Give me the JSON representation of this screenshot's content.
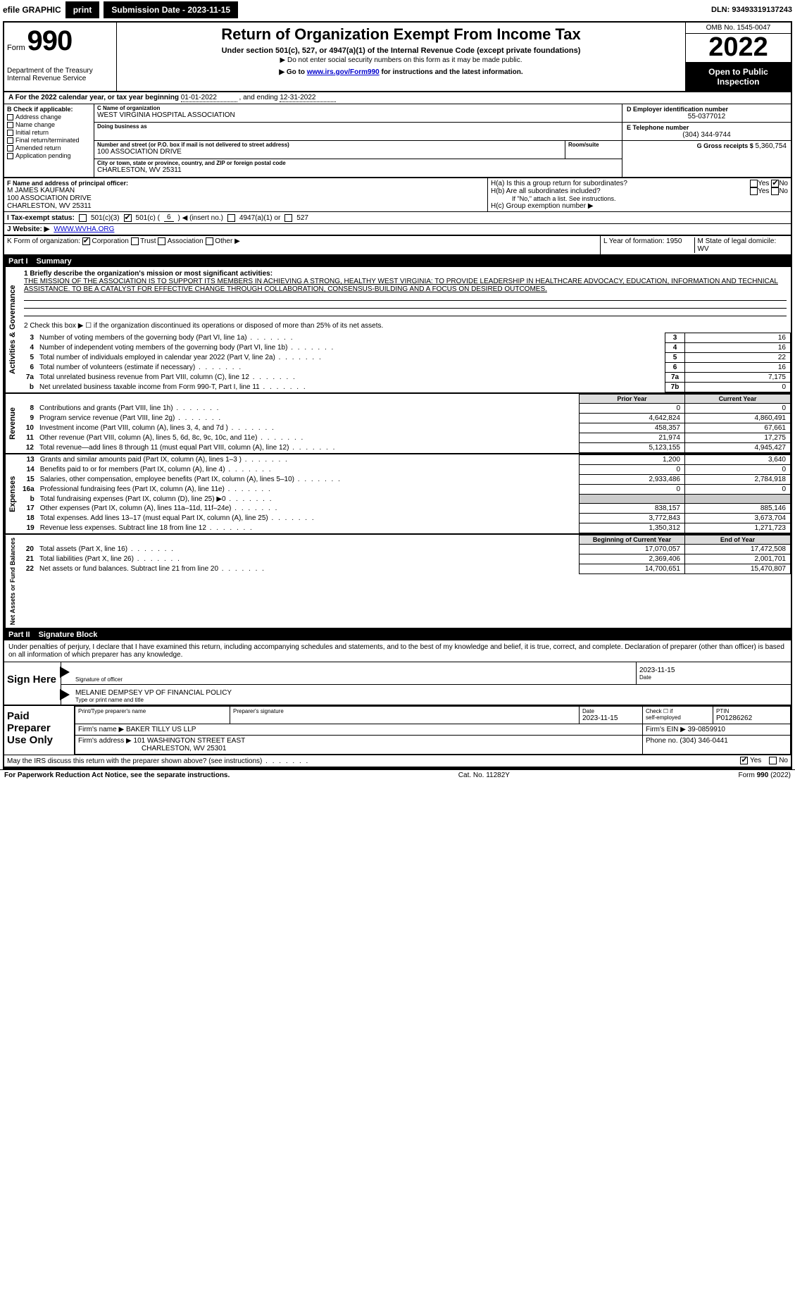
{
  "topbar": {
    "efile": "efile GRAPHIC",
    "print": "print",
    "submission": "Submission Date - 2023-11-15",
    "dln": "DLN: 93493319137243"
  },
  "header": {
    "form_word": "Form",
    "form_no": "990",
    "title": "Return of Organization Exempt From Income Tax",
    "sub": "Under section 501(c), 527, or 4947(a)(1) of the Internal Revenue Code (except private foundations)",
    "sub2": "▶ Do not enter social security numbers on this form as it may be made public.",
    "sub3_pre": "▶ Go to ",
    "sub3_link": "www.irs.gov/Form990",
    "sub3_post": " for instructions and the latest information.",
    "dept1": "Department of the Treasury",
    "dept2": "Internal Revenue Service",
    "omb": "OMB No. 1545-0047",
    "year": "2022",
    "open": "Open to Public Inspection"
  },
  "lineA": {
    "pre": "A For the 2022 calendar year, or tax year beginning ",
    "begin": "01-01-2022",
    "mid": " , and ending ",
    "end": "12-31-2022"
  },
  "boxB": {
    "hdr": "B Check if applicable:",
    "items": [
      "Address change",
      "Name change",
      "Initial return",
      "Final return/terminated",
      "Amended return",
      "Application pending"
    ]
  },
  "boxC": {
    "label": "C Name of organization",
    "name": "WEST VIRGINIA HOSPITAL ASSOCIATION",
    "dba_label": "Doing business as",
    "street_label": "Number and street (or P.O. box if mail is not delivered to street address)",
    "room_label": "Room/suite",
    "street": "100 ASSOCIATION DRIVE",
    "city_label": "City or town, state or province, country, and ZIP or foreign postal code",
    "city": "CHARLESTON, WV  25311"
  },
  "boxD": {
    "label": "D Employer identification number",
    "val": "55-0377012"
  },
  "boxE": {
    "label": "E Telephone number",
    "val": "(304) 344-9744"
  },
  "boxG": {
    "label": "G Gross receipts $",
    "val": "5,360,754"
  },
  "boxF": {
    "label": "F Name and address of principal officer:",
    "line1": "M JAMES KAUFMAN",
    "line2": "100 ASSOCIATION DRIVE",
    "line3": "CHARLESTON, WV  25311"
  },
  "boxH": {
    "a": "H(a)  Is this a group return for subordinates?",
    "b": "H(b)  Are all subordinates included?",
    "b2": "If \"No,\" attach a list. See instructions.",
    "c": "H(c)  Group exemption number ▶",
    "yes": "Yes",
    "no": "No"
  },
  "boxI": {
    "label": "I  Tax-exempt status:",
    "o1": "501(c)(3)",
    "o2a": "501(c) (",
    "o2n": "6",
    "o2b": ") ◀ (insert no.)",
    "o3": "4947(a)(1) or",
    "o4": "527"
  },
  "boxJ": {
    "label": "J  Website: ▶",
    "val": "WWW.WVHA.ORG"
  },
  "boxK": {
    "label": "K Form of organization:",
    "o1": "Corporation",
    "o2": "Trust",
    "o3": "Association",
    "o4": "Other ▶"
  },
  "boxL": {
    "label": "L Year of formation:",
    "val": "1950"
  },
  "boxM": {
    "label": "M State of legal domicile:",
    "val": "WV"
  },
  "part1": {
    "hdr_num": "Part I",
    "hdr_title": "Summary",
    "side1": "Activities & Governance",
    "side2": "Revenue",
    "side3": "Expenses",
    "side4": "Net Assets or Fund Balances",
    "l1": "1  Briefly describe the organization's mission or most significant activities:",
    "mission": "THE MISSION OF THE ASSOCIATION IS TO SUPPORT ITS MEMBERS IN ACHIEVING A STRONG, HEALTHY WEST VIRGINIA: TO PROVIDE LEADERSHIP IN HEALTHCARE ADVOCACY, EDUCATION, INFORMATION AND TECHNICAL ASSISTANCE. TO BE A CATALYST FOR EFFECTIVE CHANGE THROUGH COLLABORATION, CONSENSUS-BUILDING AND A FOCUS ON DESIRED OUTCOMES.",
    "l2": "2  Check this box ▶ ☐ if the organization discontinued its operations or disposed of more than 25% of its net assets.",
    "rows_a": [
      {
        "n": "3",
        "t": "Number of voting members of the governing body (Part VI, line 1a)",
        "b": "3",
        "v": "16"
      },
      {
        "n": "4",
        "t": "Number of independent voting members of the governing body (Part VI, line 1b)",
        "b": "4",
        "v": "16"
      },
      {
        "n": "5",
        "t": "Total number of individuals employed in calendar year 2022 (Part V, line 2a)",
        "b": "5",
        "v": "22"
      },
      {
        "n": "6",
        "t": "Total number of volunteers (estimate if necessary)",
        "b": "6",
        "v": "16"
      },
      {
        "n": "7a",
        "t": "Total unrelated business revenue from Part VIII, column (C), line 12",
        "b": "7a",
        "v": "7,175"
      },
      {
        "n": "b",
        "t": "Net unrelated business taxable income from Form 990-T, Part I, line 11",
        "b": "7b",
        "v": "0"
      }
    ],
    "col_prior": "Prior Year",
    "col_current": "Current Year",
    "rows_rev": [
      {
        "n": "8",
        "t": "Contributions and grants (Part VIII, line 1h)",
        "p": "0",
        "c": "0"
      },
      {
        "n": "9",
        "t": "Program service revenue (Part VIII, line 2g)",
        "p": "4,642,824",
        "c": "4,860,491"
      },
      {
        "n": "10",
        "t": "Investment income (Part VIII, column (A), lines 3, 4, and 7d )",
        "p": "458,357",
        "c": "67,661"
      },
      {
        "n": "11",
        "t": "Other revenue (Part VIII, column (A), lines 5, 6d, 8c, 9c, 10c, and 11e)",
        "p": "21,974",
        "c": "17,275"
      },
      {
        "n": "12",
        "t": "Total revenue—add lines 8 through 11 (must equal Part VIII, column (A), line 12)",
        "p": "5,123,155",
        "c": "4,945,427"
      }
    ],
    "rows_exp": [
      {
        "n": "13",
        "t": "Grants and similar amounts paid (Part IX, column (A), lines 1–3 )",
        "p": "1,200",
        "c": "3,640"
      },
      {
        "n": "14",
        "t": "Benefits paid to or for members (Part IX, column (A), line 4)",
        "p": "0",
        "c": "0"
      },
      {
        "n": "15",
        "t": "Salaries, other compensation, employee benefits (Part IX, column (A), lines 5–10)",
        "p": "2,933,486",
        "c": "2,784,918"
      },
      {
        "n": "16a",
        "t": "Professional fundraising fees (Part IX, column (A), line 11e)",
        "p": "0",
        "c": "0"
      },
      {
        "n": "b",
        "t": "Total fundraising expenses (Part IX, column (D), line 25) ▶0",
        "p": "",
        "c": "",
        "shade": true
      },
      {
        "n": "17",
        "t": "Other expenses (Part IX, column (A), lines 11a–11d, 11f–24e)",
        "p": "838,157",
        "c": "885,146"
      },
      {
        "n": "18",
        "t": "Total expenses. Add lines 13–17 (must equal Part IX, column (A), line 25)",
        "p": "3,772,843",
        "c": "3,673,704"
      },
      {
        "n": "19",
        "t": "Revenue less expenses. Subtract line 18 from line 12",
        "p": "1,350,312",
        "c": "1,271,723"
      }
    ],
    "col_bog": "Beginning of Current Year",
    "col_eoy": "End of Year",
    "rows_net": [
      {
        "n": "20",
        "t": "Total assets (Part X, line 16)",
        "p": "17,070,057",
        "c": "17,472,508"
      },
      {
        "n": "21",
        "t": "Total liabilities (Part X, line 26)",
        "p": "2,369,406",
        "c": "2,001,701"
      },
      {
        "n": "22",
        "t": "Net assets or fund balances. Subtract line 21 from line 20",
        "p": "14,700,651",
        "c": "15,470,807"
      }
    ]
  },
  "part2": {
    "hdr_num": "Part II",
    "hdr_title": "Signature Block",
    "intro": "Under penalties of perjury, I declare that I have examined this return, including accompanying schedules and statements, and to the best of my knowledge and belief, it is true, correct, and complete. Declaration of preparer (other than officer) is based on all information of which preparer has any knowledge.",
    "sign": "Sign Here",
    "sig_officer": "Signature of officer",
    "sig_date": "Date",
    "sig_date_val": "2023-11-15",
    "sig_name": "MELANIE DEMPSEY VP OF FINANCIAL POLICY",
    "sig_type": "Type or print name and title",
    "paid": "Paid Preparer Use Only",
    "p_h1": "Print/Type preparer's name",
    "p_h2": "Preparer's signature",
    "p_h3": "Date",
    "p_h3v": "2023-11-15",
    "p_h4a": "Check ☐ if",
    "p_h4b": "self-employed",
    "p_h5": "PTIN",
    "p_h5v": "P01286262",
    "firm_name_l": "Firm's name     ▶",
    "firm_name": "BAKER TILLY US LLP",
    "firm_ein_l": "Firm's EIN ▶",
    "firm_ein": "39-0859910",
    "firm_addr_l": "Firm's address ▶",
    "firm_addr1": "101 WASHINGTON STREET EAST",
    "firm_addr2": "CHARLESTON, WV  25301",
    "firm_phone_l": "Phone no.",
    "firm_phone": "(304) 346-0441",
    "may": "May the IRS discuss this return with the preparer shown above? (see instructions)",
    "yes": "Yes",
    "no": "No"
  },
  "footer": {
    "l": "For Paperwork Reduction Act Notice, see the separate instructions.",
    "m": "Cat. No. 11282Y",
    "r": "Form 990 (2022)"
  }
}
